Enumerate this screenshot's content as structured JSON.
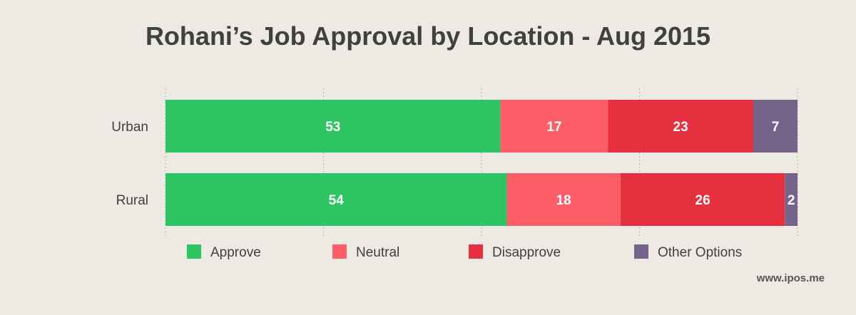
{
  "chart_data": {
    "type": "bar",
    "orientation": "horizontal",
    "stacked": true,
    "title": "Rohani’s Job Approval by Location - Aug 2015",
    "categories": [
      "Urban",
      "Rural"
    ],
    "series": [
      {
        "name": "Approve",
        "values": [
          53,
          54
        ],
        "color": "#2fc463"
      },
      {
        "name": "Neutral",
        "values": [
          17,
          18
        ],
        "color": "#fb5e67"
      },
      {
        "name": "Disapprove",
        "values": [
          23,
          26
        ],
        "color": "#e5303f"
      },
      {
        "name": "Other Options",
        "values": [
          7,
          2
        ],
        "color": "#76638c"
      }
    ],
    "xlim": [
      0,
      100
    ],
    "grid": true,
    "legend_position": "bottom"
  },
  "source": "www.ipos.me"
}
